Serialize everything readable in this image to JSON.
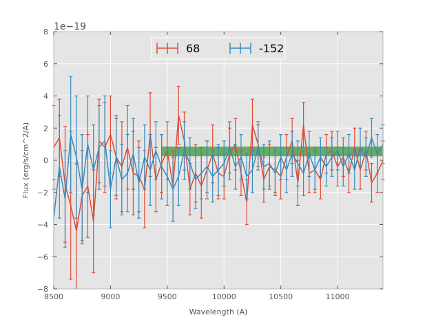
{
  "chart_data": {
    "type": "line",
    "title": "",
    "xlabel": "Wavelength (A)",
    "ylabel": "Flux (erg/s/cm^2/A)",
    "y_offset_label": "1e−19",
    "xlim": [
      8500,
      11400
    ],
    "ylim": [
      -8,
      8
    ],
    "y_scale": 1e-19,
    "x_ticks": [
      8500,
      9000,
      9500,
      10000,
      10500,
      11000
    ],
    "x_tick_labels": [
      "8500",
      "9000",
      "9500",
      "10000",
      "10500",
      "11000"
    ],
    "y_ticks": [
      -8,
      -6,
      -4,
      -2,
      0,
      2,
      4,
      6,
      8
    ],
    "y_tick_labels": [
      "−8",
      "−6",
      "−4",
      "−2",
      "0",
      "2",
      "4",
      "6",
      "8"
    ],
    "grid": true,
    "legend": {
      "placement": "top-center",
      "entries": [
        "68",
        "-152"
      ]
    },
    "band": {
      "x_start": 9450,
      "x_end": 11400,
      "y_low": 0.25,
      "y_high": 0.85,
      "color": "#3a9a3a"
    },
    "colors": {
      "68": "#e24a33",
      "-152": "#348abd",
      "background": "#e5e5e5",
      "grid": "#ffffff"
    },
    "series": [
      {
        "name": "68",
        "x": [
          8500,
          8550,
          8600,
          8650,
          8700,
          8750,
          8800,
          8850,
          8900,
          8950,
          9000,
          9050,
          9100,
          9150,
          9200,
          9250,
          9300,
          9350,
          9400,
          9450,
          9500,
          9550,
          9600,
          9650,
          9700,
          9750,
          9800,
          9850,
          9900,
          9950,
          10000,
          10050,
          10100,
          10150,
          10200,
          10250,
          10300,
          10350,
          10400,
          10450,
          10500,
          10550,
          10600,
          10650,
          10700,
          10750,
          10800,
          10850,
          10900,
          10950,
          11000,
          11050,
          11100,
          11150,
          11200,
          11250,
          11300,
          11350,
          11400
        ],
        "y": [
          0.8,
          1.4,
          -1.5,
          -2.8,
          -4.4,
          -2.2,
          -1.6,
          -3.8,
          1.2,
          0.8,
          1.6,
          0.2,
          -0.4,
          0.8,
          -0.8,
          -1.0,
          -1.8,
          1.6,
          -1.2,
          -0.2,
          0.6,
          -1.6,
          2.8,
          1.2,
          -1.8,
          -0.8,
          -1.6,
          -0.6,
          0.4,
          -0.8,
          -1.0,
          0.4,
          1.0,
          -0.8,
          -2.6,
          2.2,
          1.0,
          -1.2,
          -0.4,
          -0.6,
          -1.0,
          0.2,
          1.2,
          -1.4,
          2.2,
          -0.8,
          -0.6,
          -1.2,
          0.4,
          0.6,
          -0.4,
          0.2,
          -0.8,
          0.8,
          -0.6,
          0.6,
          -1.4,
          -0.8,
          0.0
        ],
        "err": [
          2.6,
          2.4,
          3.6,
          4.6,
          4.2,
          2.8,
          3.2,
          3.2,
          2.6,
          2.8,
          2.4,
          2.6,
          2.8,
          2.6,
          2.6,
          2.2,
          2.4,
          2.6,
          2.0,
          1.8,
          1.8,
          2.2,
          1.8,
          1.8,
          1.6,
          1.8,
          2.0,
          1.8,
          1.8,
          1.6,
          1.4,
          1.6,
          1.6,
          1.4,
          1.4,
          1.6,
          1.4,
          1.4,
          1.4,
          1.4,
          1.4,
          1.4,
          1.4,
          1.4,
          1.4,
          1.2,
          1.4,
          1.2,
          1.2,
          1.2,
          1.2,
          1.2,
          1.2,
          1.2,
          1.2,
          1.2,
          1.2,
          1.2,
          1.2
        ]
      },
      {
        "name": "-152",
        "x": [
          8500,
          8550,
          8600,
          8650,
          8700,
          8750,
          8800,
          8850,
          8900,
          8950,
          9000,
          9050,
          9100,
          9150,
          9200,
          9250,
          9300,
          9350,
          9400,
          9450,
          9500,
          9550,
          9600,
          9650,
          9700,
          9750,
          9800,
          9850,
          9900,
          9950,
          10000,
          10050,
          10100,
          10150,
          10200,
          10250,
          10300,
          10350,
          10400,
          10450,
          10500,
          10550,
          10600,
          10650,
          10700,
          10750,
          10800,
          10850,
          10900,
          10950,
          11000,
          11050,
          11100,
          11150,
          11200,
          11250,
          11300,
          11350,
          11400
        ],
        "y": [
          -3.6,
          -0.4,
          -2.4,
          1.6,
          0.2,
          -1.8,
          1.0,
          -0.6,
          0.8,
          1.2,
          -1.8,
          0.2,
          -1.2,
          -0.8,
          0.4,
          -1.4,
          0.2,
          -0.6,
          0.6,
          -0.4,
          -1.0,
          -1.8,
          -1.0,
          0.6,
          -0.2,
          -1.2,
          -0.8,
          -0.4,
          -1.0,
          -0.6,
          -0.2,
          0.8,
          -0.4,
          0.2,
          -1.0,
          -0.6,
          0.8,
          -0.4,
          -0.2,
          -0.8,
          0.2,
          -0.6,
          0.4,
          -0.2,
          -0.8,
          0.4,
          -0.6,
          0.2,
          -0.4,
          0.2,
          0.6,
          -0.4,
          0.4,
          -0.6,
          0.8,
          0.2,
          1.4,
          0.4,
          1.0
        ],
        "err": [
          2.4,
          3.2,
          3.0,
          3.6,
          3.8,
          3.4,
          3.0,
          2.8,
          2.6,
          2.8,
          2.4,
          2.4,
          2.2,
          2.4,
          2.2,
          2.2,
          2.0,
          2.2,
          1.8,
          2.0,
          1.8,
          2.0,
          1.8,
          1.8,
          1.6,
          1.8,
          1.6,
          1.6,
          1.6,
          1.6,
          1.4,
          1.6,
          1.4,
          1.4,
          1.4,
          1.4,
          1.4,
          1.4,
          1.4,
          1.4,
          1.4,
          1.4,
          1.4,
          1.4,
          1.4,
          1.4,
          1.2,
          1.2,
          1.2,
          1.2,
          1.2,
          1.2,
          1.2,
          1.2,
          1.2,
          1.2,
          1.2,
          1.2,
          1.2
        ]
      }
    ]
  }
}
